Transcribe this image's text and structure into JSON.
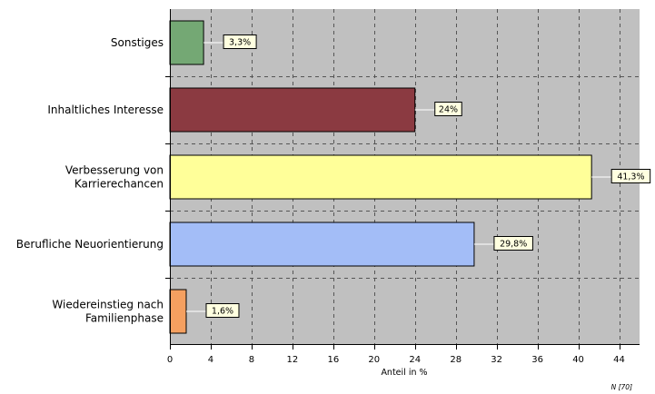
{
  "chart_data": {
    "type": "bar",
    "orientation": "horizontal",
    "categories": [
      [
        "Sonstiges"
      ],
      [
        "Inhaltliches Interesse"
      ],
      [
        "Verbesserung von",
        "Karrierechancen"
      ],
      [
        "Berufliche Neuorientierung"
      ],
      [
        "Wiedereinstieg nach",
        "Familienphase"
      ]
    ],
    "values": [
      3.3,
      24,
      41.3,
      29.8,
      1.6
    ],
    "value_labels": [
      "3,3%",
      "24%",
      "41,3%",
      "29,8%",
      "1,6%"
    ],
    "colors": [
      "#74a874",
      "#8b3a41",
      "#ffff99",
      "#a3bdf7",
      "#f5a060"
    ],
    "xlim": [
      0,
      46
    ],
    "xticks": [
      0,
      4,
      8,
      12,
      16,
      20,
      24,
      28,
      32,
      36,
      40,
      44
    ],
    "xlabel": "Anteil in %",
    "note": "N [70]",
    "grid": true,
    "plot_background": "#c0c0c0",
    "label_background": "#ffffe0"
  }
}
